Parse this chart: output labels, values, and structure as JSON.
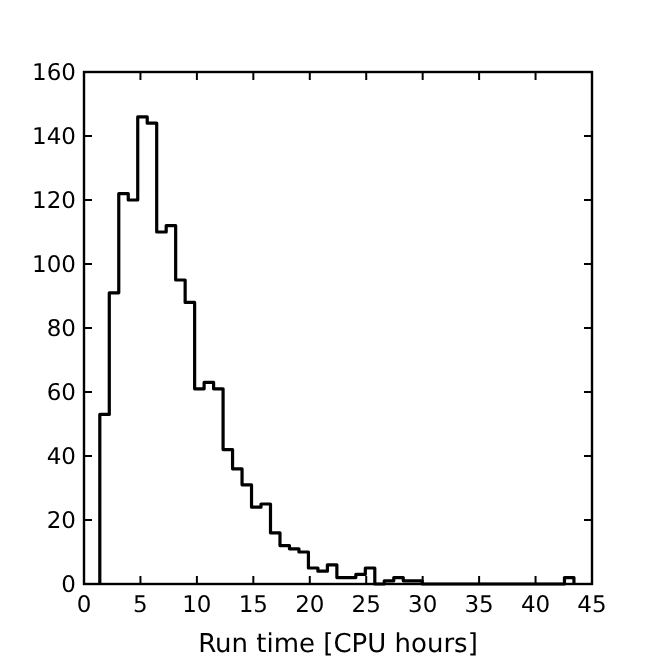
{
  "chart_data": {
    "type": "histogram",
    "xlabel": "Run time [CPU hours]",
    "bins": [
      1.4,
      2.24,
      3.08,
      3.92,
      4.76,
      5.6,
      6.44,
      7.28,
      8.12,
      8.96,
      9.8,
      10.64,
      11.48,
      12.32,
      13.16,
      14,
      14.84,
      15.68,
      16.52,
      17.36,
      18.2,
      19.04,
      19.88,
      20.72,
      21.56,
      22.4,
      23.24,
      24.08,
      24.92,
      25.76,
      26.6,
      27.44,
      28.28,
      29.12,
      29.96,
      30.8,
      31.64,
      32.48,
      33.32,
      34.16,
      35,
      35.84,
      36.68,
      37.52,
      38.36,
      39.2,
      40.04,
      40.88,
      41.72,
      42.56,
      43.4
    ],
    "values": [
      53,
      91,
      122,
      120,
      146,
      144,
      110,
      112,
      95,
      88,
      61,
      63,
      61,
      42,
      36,
      31,
      24,
      25,
      16,
      12,
      11,
      10,
      5,
      4,
      6,
      2,
      2,
      3,
      5,
      0,
      1,
      2,
      1,
      1,
      0,
      0,
      0,
      0,
      0,
      0,
      0,
      0,
      0,
      0,
      0,
      0,
      0,
      0,
      0,
      2
    ],
    "color": "#000000",
    "xlim": [
      0,
      45
    ],
    "xticks": [
      0,
      5,
      10,
      15,
      20,
      25,
      30,
      35,
      40,
      45
    ],
    "ylim": [
      0,
      160
    ],
    "yticks": [
      0,
      20,
      40,
      60,
      80,
      100,
      120,
      140,
      160
    ],
    "grid": false
  }
}
